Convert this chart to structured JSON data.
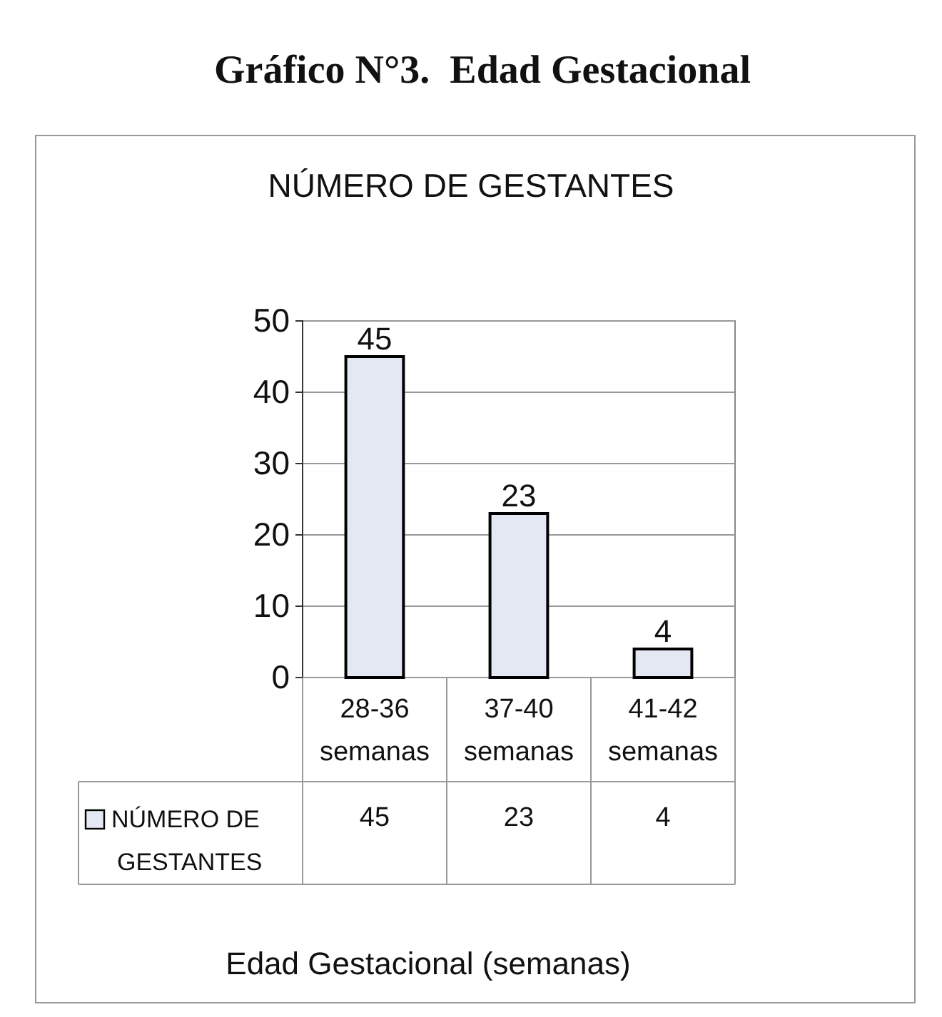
{
  "chart_data": {
    "type": "bar",
    "title": "Gráfico N°3.  Edad Gestacional",
    "subtitle": "NÚMERO DE GESTANTES",
    "categories": [
      "28-36 semanas",
      "37-40 semanas",
      "41-42 semanas"
    ],
    "series": [
      {
        "name": "NÚMERO DE GESTANTES",
        "color": "#e4e8f2",
        "values": [
          45,
          23,
          4
        ]
      }
    ],
    "ylim": [
      0,
      50
    ],
    "yticks": [
      0,
      10,
      20,
      30,
      40,
      50
    ],
    "grid": "y",
    "legend": "bottom left",
    "data_labels": true,
    "annotations": [
      {
        "text": "45",
        "x": "28-36 semanas",
        "y": 45
      },
      {
        "text": "23",
        "x": "37-40 semanas",
        "y": 23
      },
      {
        "text": "4",
        "x": "41-42 semanas",
        "y": 4
      },
      "Edad Gestacional (semanas)"
    ]
  }
}
